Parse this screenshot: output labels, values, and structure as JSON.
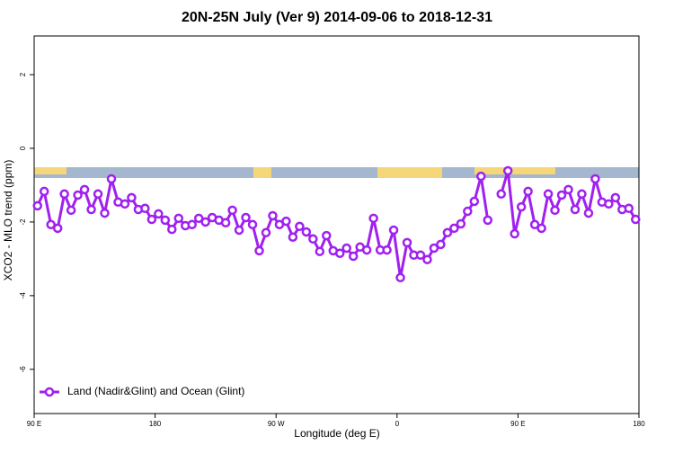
{
  "chart_data": {
    "type": "line",
    "title": "20N-25N July (Ver 9)   2014-09-06 to 2018-12-31",
    "x_label": "Longitude (deg E)",
    "y_label": "XCO2 - MLO trend (ppm)",
    "xlim": [
      90,
      540
    ],
    "xticks": [
      {
        "value": 90,
        "label": "90 E"
      },
      180,
      {
        "value": 270,
        "label": "90 W"
      },
      {
        "value": 360,
        "label": "0"
      },
      {
        "value": 450,
        "label": "90 E"
      },
      {
        "value": 540,
        "label": "180"
      }
    ],
    "ylim": [
      -7.2,
      3.05
    ],
    "yticks": [
      2,
      0,
      -2,
      -4,
      -6
    ],
    "legend": "bottom-left",
    "x": [
      92.5,
      97.5,
      102.5,
      107.5,
      112.5,
      117.5,
      122.5,
      127.5,
      132.5,
      137.5,
      142.5,
      147.5,
      152.5,
      157.5,
      162.5,
      167.5,
      172.5,
      177.5,
      182.5,
      187.5,
      192.5,
      197.5,
      202.5,
      207.5,
      212.5,
      217.5,
      222.5,
      227.5,
      232.5,
      237.5,
      242.5,
      247.5,
      252.5,
      257.5,
      262.5,
      267.5,
      272.5,
      277.5,
      282.5,
      287.5,
      292.5,
      297.5,
      302.5,
      307.5,
      312.5,
      317.5,
      322.5,
      327.5,
      332.5,
      337.5,
      342.5,
      347.5,
      352.5,
      357.5,
      362.5,
      367.5,
      372.5,
      377.5,
      382.5,
      387.5,
      392.5,
      397.5,
      402.5,
      407.5,
      412.5,
      417.5,
      422.5,
      427.5,
      432.5,
      437.5,
      442.5,
      447.5,
      452.5,
      457.5,
      462.5,
      467.5,
      472.5,
      477.5,
      482.5,
      487.5,
      492.5,
      497.5,
      502.5,
      507.5,
      512.5,
      517.5,
      522.5,
      527.5,
      532.5,
      537.5
    ],
    "series": [
      {
        "name": "Land (Nadir&Glint) and Ocean (Glint)",
        "color": "#a020f0",
        "values": [
          -1.56,
          -1.17,
          -2.07,
          -2.17,
          -1.24,
          -1.68,
          -1.27,
          -1.12,
          -1.66,
          -1.24,
          -1.76,
          -0.83,
          -1.46,
          -1.51,
          -1.34,
          -1.66,
          -1.63,
          -1.93,
          -1.78,
          -1.95,
          -2.2,
          -1.9,
          -2.1,
          -2.07,
          -1.9,
          -2.0,
          -1.88,
          -1.95,
          -2.02,
          -1.68,
          -2.22,
          -1.88,
          -2.07,
          -2.78,
          -2.29,
          -1.83,
          -2.07,
          -1.98,
          -2.41,
          -2.12,
          -2.27,
          -2.46,
          -2.8,
          -2.37,
          -2.78,
          -2.85,
          -2.71,
          -2.93,
          -2.68,
          -2.76,
          -1.9,
          -2.76,
          -2.76,
          -2.22,
          -3.51,
          -2.56,
          -2.9,
          -2.9,
          -3.02,
          -2.71,
          -2.61,
          -2.29,
          -2.17,
          -2.05,
          -1.71,
          -1.44,
          -0.76,
          -1.95,
          null,
          -1.24,
          -0.61,
          -2.32,
          -1.59,
          -1.17,
          -2.07,
          -2.17,
          -1.24,
          -1.68,
          -1.27,
          -1.12,
          -1.66,
          -1.24,
          -1.76,
          -0.83,
          -1.46,
          -1.51,
          -1.34,
          -1.66,
          -1.63,
          -1.93
        ]
      }
    ]
  }
}
